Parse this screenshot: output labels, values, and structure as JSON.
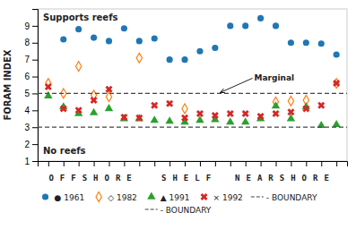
{
  "chart_data": {
    "type": "scatter",
    "y_label": "FORAM INDEX",
    "series": [
      {
        "name": "● 1961",
        "marker": "circle",
        "x": [
          2,
          3,
          4,
          5,
          6,
          7,
          8,
          9,
          10,
          11,
          12,
          13,
          14,
          15,
          16,
          17,
          18,
          19,
          20
        ],
        "values": [
          8.2,
          8.8,
          8.3,
          8.1,
          8.85,
          8.1,
          8.25,
          7.0,
          7.0,
          7.5,
          7.7,
          9.0,
          9.0,
          9.45,
          9.0,
          8.0,
          8.0,
          7.95,
          7.3
        ]
      },
      {
        "name": "◇ 1982",
        "marker": "diamond",
        "x": [
          1,
          2,
          3,
          4,
          5,
          7,
          10,
          16,
          17,
          18,
          20
        ],
        "values": [
          5.6,
          5.0,
          6.6,
          4.9,
          4.8,
          7.1,
          4.1,
          4.5,
          4.55,
          4.6,
          5.6
        ]
      },
      {
        "name": "▲ 1991",
        "marker": "triangle",
        "x": [
          1,
          2,
          3,
          4,
          5,
          6,
          7,
          8,
          9,
          10,
          11,
          12,
          13,
          14,
          15,
          16,
          17,
          18,
          19,
          20
        ],
        "values": [
          4.85,
          4.2,
          3.8,
          3.85,
          4.1,
          3.5,
          3.5,
          3.4,
          3.35,
          3.3,
          3.4,
          3.45,
          3.3,
          3.3,
          3.5,
          4.25,
          3.5,
          4.2,
          3.1,
          3.15
        ]
      },
      {
        "name": "× 1992",
        "marker": "x",
        "x": [
          1,
          2,
          3,
          4,
          5,
          6,
          7,
          8,
          9,
          10,
          11,
          12,
          13,
          14,
          15,
          16,
          17,
          18,
          19,
          20
        ],
        "values": [
          5.4,
          4.1,
          4.0,
          4.6,
          5.25,
          3.6,
          3.55,
          4.3,
          4.4,
          3.55,
          3.8,
          3.7,
          3.8,
          3.8,
          3.65,
          3.8,
          3.9,
          4.1,
          4.3,
          5.6
        ]
      },
      {
        "name": "- BOUNDARY",
        "type": "hline",
        "line_style": "dashed",
        "values": [
          5.0
        ]
      },
      {
        "name": "- BOUNDARY",
        "type": "hline",
        "line_style": "dashed",
        "values": [
          3.0
        ]
      }
    ],
    "annotations": [
      {
        "text": "Supports reefs"
      },
      {
        "text": "No reefs"
      },
      {
        "text": "Marginal"
      },
      {
        "text": "OFFSHORE"
      },
      {
        "text": "SHELF"
      },
      {
        "text": "NEARSHORE"
      }
    ],
    "xlim": [
      0.3,
      20.7
    ],
    "xticks": [
      1,
      2,
      3,
      4,
      5,
      6,
      7,
      8,
      9,
      10,
      11,
      12,
      13,
      14,
      15,
      16,
      17,
      18,
      19,
      20
    ],
    "ylim": [
      1,
      10
    ],
    "yticks": [
      1,
      2,
      3,
      4,
      5,
      6,
      7,
      8,
      9
    ],
    "tick_labels": "y",
    "grid": false,
    "legend": "bottom"
  }
}
